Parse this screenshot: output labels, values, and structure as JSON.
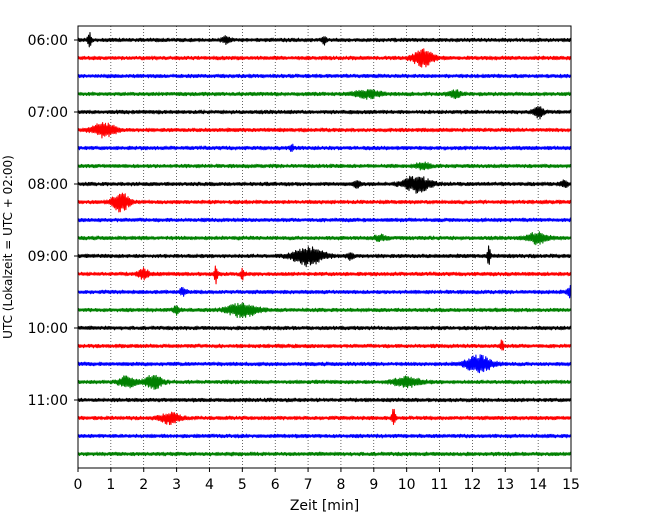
{
  "chart_data": {
    "type": "line",
    "title": "",
    "xlabel": "Zeit  [min]",
    "ylabel": "UTC (Lokalzeit = UTC + 02:00)",
    "xlim": [
      0,
      15
    ],
    "x_ticks": [
      0,
      1,
      2,
      3,
      4,
      5,
      6,
      7,
      8,
      9,
      10,
      11,
      12,
      13,
      14,
      15
    ],
    "grid": "vertical dotted",
    "y_ticks": [
      "06:00",
      "07:00",
      "08:00",
      "09:00",
      "10:00",
      "11:00"
    ],
    "trace_colors": [
      "#000000",
      "#ff0000",
      "#0000ff",
      "#008000"
    ],
    "traces": [
      {
        "start": "06:00",
        "color": "#000000",
        "events": [
          {
            "t": 0.35,
            "amp": 0.75,
            "w": 0.05
          },
          {
            "t": 4.5,
            "amp": 0.25,
            "w": 0.12
          },
          {
            "t": 7.5,
            "amp": 0.45,
            "w": 0.05
          }
        ]
      },
      {
        "start": "06:15",
        "color": "#ff0000",
        "events": [
          {
            "t": 10.5,
            "amp": 0.65,
            "w": 0.3
          }
        ]
      },
      {
        "start": "06:30",
        "color": "#0000ff",
        "events": []
      },
      {
        "start": "06:45",
        "color": "#008000",
        "events": [
          {
            "t": 8.8,
            "amp": 0.3,
            "w": 0.4
          },
          {
            "t": 11.5,
            "amp": 0.25,
            "w": 0.2
          }
        ]
      },
      {
        "start": "07:00",
        "color": "#000000",
        "events": [
          {
            "t": 14.0,
            "amp": 0.5,
            "w": 0.15
          }
        ]
      },
      {
        "start": "07:15",
        "color": "#ff0000",
        "events": [
          {
            "t": 0.8,
            "amp": 0.55,
            "w": 0.35
          }
        ]
      },
      {
        "start": "07:30",
        "color": "#0000ff",
        "events": [
          {
            "t": 6.5,
            "amp": 0.35,
            "w": 0.05
          }
        ]
      },
      {
        "start": "07:45",
        "color": "#008000",
        "events": [
          {
            "t": 10.5,
            "amp": 0.25,
            "w": 0.2
          }
        ]
      },
      {
        "start": "08:00",
        "color": "#000000",
        "events": [
          {
            "t": 10.3,
            "amp": 0.65,
            "w": 0.4
          },
          {
            "t": 8.5,
            "amp": 0.25,
            "w": 0.1
          },
          {
            "t": 14.8,
            "amp": 0.3,
            "w": 0.1
          }
        ]
      },
      {
        "start": "08:15",
        "color": "#ff0000",
        "events": [
          {
            "t": 1.3,
            "amp": 0.75,
            "w": 0.25
          }
        ]
      },
      {
        "start": "08:30",
        "color": "#0000ff",
        "events": []
      },
      {
        "start": "08:45",
        "color": "#008000",
        "events": [
          {
            "t": 14.0,
            "amp": 0.45,
            "w": 0.3
          },
          {
            "t": 9.2,
            "amp": 0.2,
            "w": 0.2
          }
        ]
      },
      {
        "start": "09:00",
        "color": "#000000",
        "events": [
          {
            "t": 7.0,
            "amp": 0.75,
            "w": 0.45
          },
          {
            "t": 12.5,
            "amp": 0.85,
            "w": 0.05
          },
          {
            "t": 8.3,
            "amp": 0.3,
            "w": 0.1
          }
        ]
      },
      {
        "start": "09:15",
        "color": "#ff0000",
        "events": [
          {
            "t": 2.0,
            "amp": 0.4,
            "w": 0.15
          },
          {
            "t": 4.2,
            "amp": 0.75,
            "w": 0.05
          },
          {
            "t": 5.0,
            "amp": 0.4,
            "w": 0.05
          }
        ]
      },
      {
        "start": "09:30",
        "color": "#0000ff",
        "events": [
          {
            "t": 3.2,
            "amp": 0.3,
            "w": 0.1
          },
          {
            "t": 15.0,
            "amp": 0.45,
            "w": 0.1
          }
        ]
      },
      {
        "start": "09:45",
        "color": "#008000",
        "events": [
          {
            "t": 5.0,
            "amp": 0.55,
            "w": 0.45
          },
          {
            "t": 3.0,
            "amp": 0.3,
            "w": 0.1
          }
        ]
      },
      {
        "start": "10:00",
        "color": "#000000",
        "events": []
      },
      {
        "start": "10:15",
        "color": "#ff0000",
        "events": [
          {
            "t": 12.9,
            "amp": 0.5,
            "w": 0.05
          }
        ]
      },
      {
        "start": "10:30",
        "color": "#0000ff",
        "events": [
          {
            "t": 12.2,
            "amp": 0.65,
            "w": 0.4
          }
        ]
      },
      {
        "start": "10:45",
        "color": "#008000",
        "events": [
          {
            "t": 1.5,
            "amp": 0.45,
            "w": 0.25
          },
          {
            "t": 2.3,
            "amp": 0.55,
            "w": 0.25
          },
          {
            "t": 10.0,
            "amp": 0.4,
            "w": 0.4
          }
        ]
      },
      {
        "start": "11:00",
        "color": "#000000",
        "events": []
      },
      {
        "start": "11:15",
        "color": "#ff0000",
        "events": [
          {
            "t": 2.8,
            "amp": 0.4,
            "w": 0.3
          },
          {
            "t": 9.6,
            "amp": 0.75,
            "w": 0.05
          }
        ]
      },
      {
        "start": "11:30",
        "color": "#0000ff",
        "events": []
      },
      {
        "start": "11:45",
        "color": "#008000",
        "events": []
      }
    ]
  }
}
